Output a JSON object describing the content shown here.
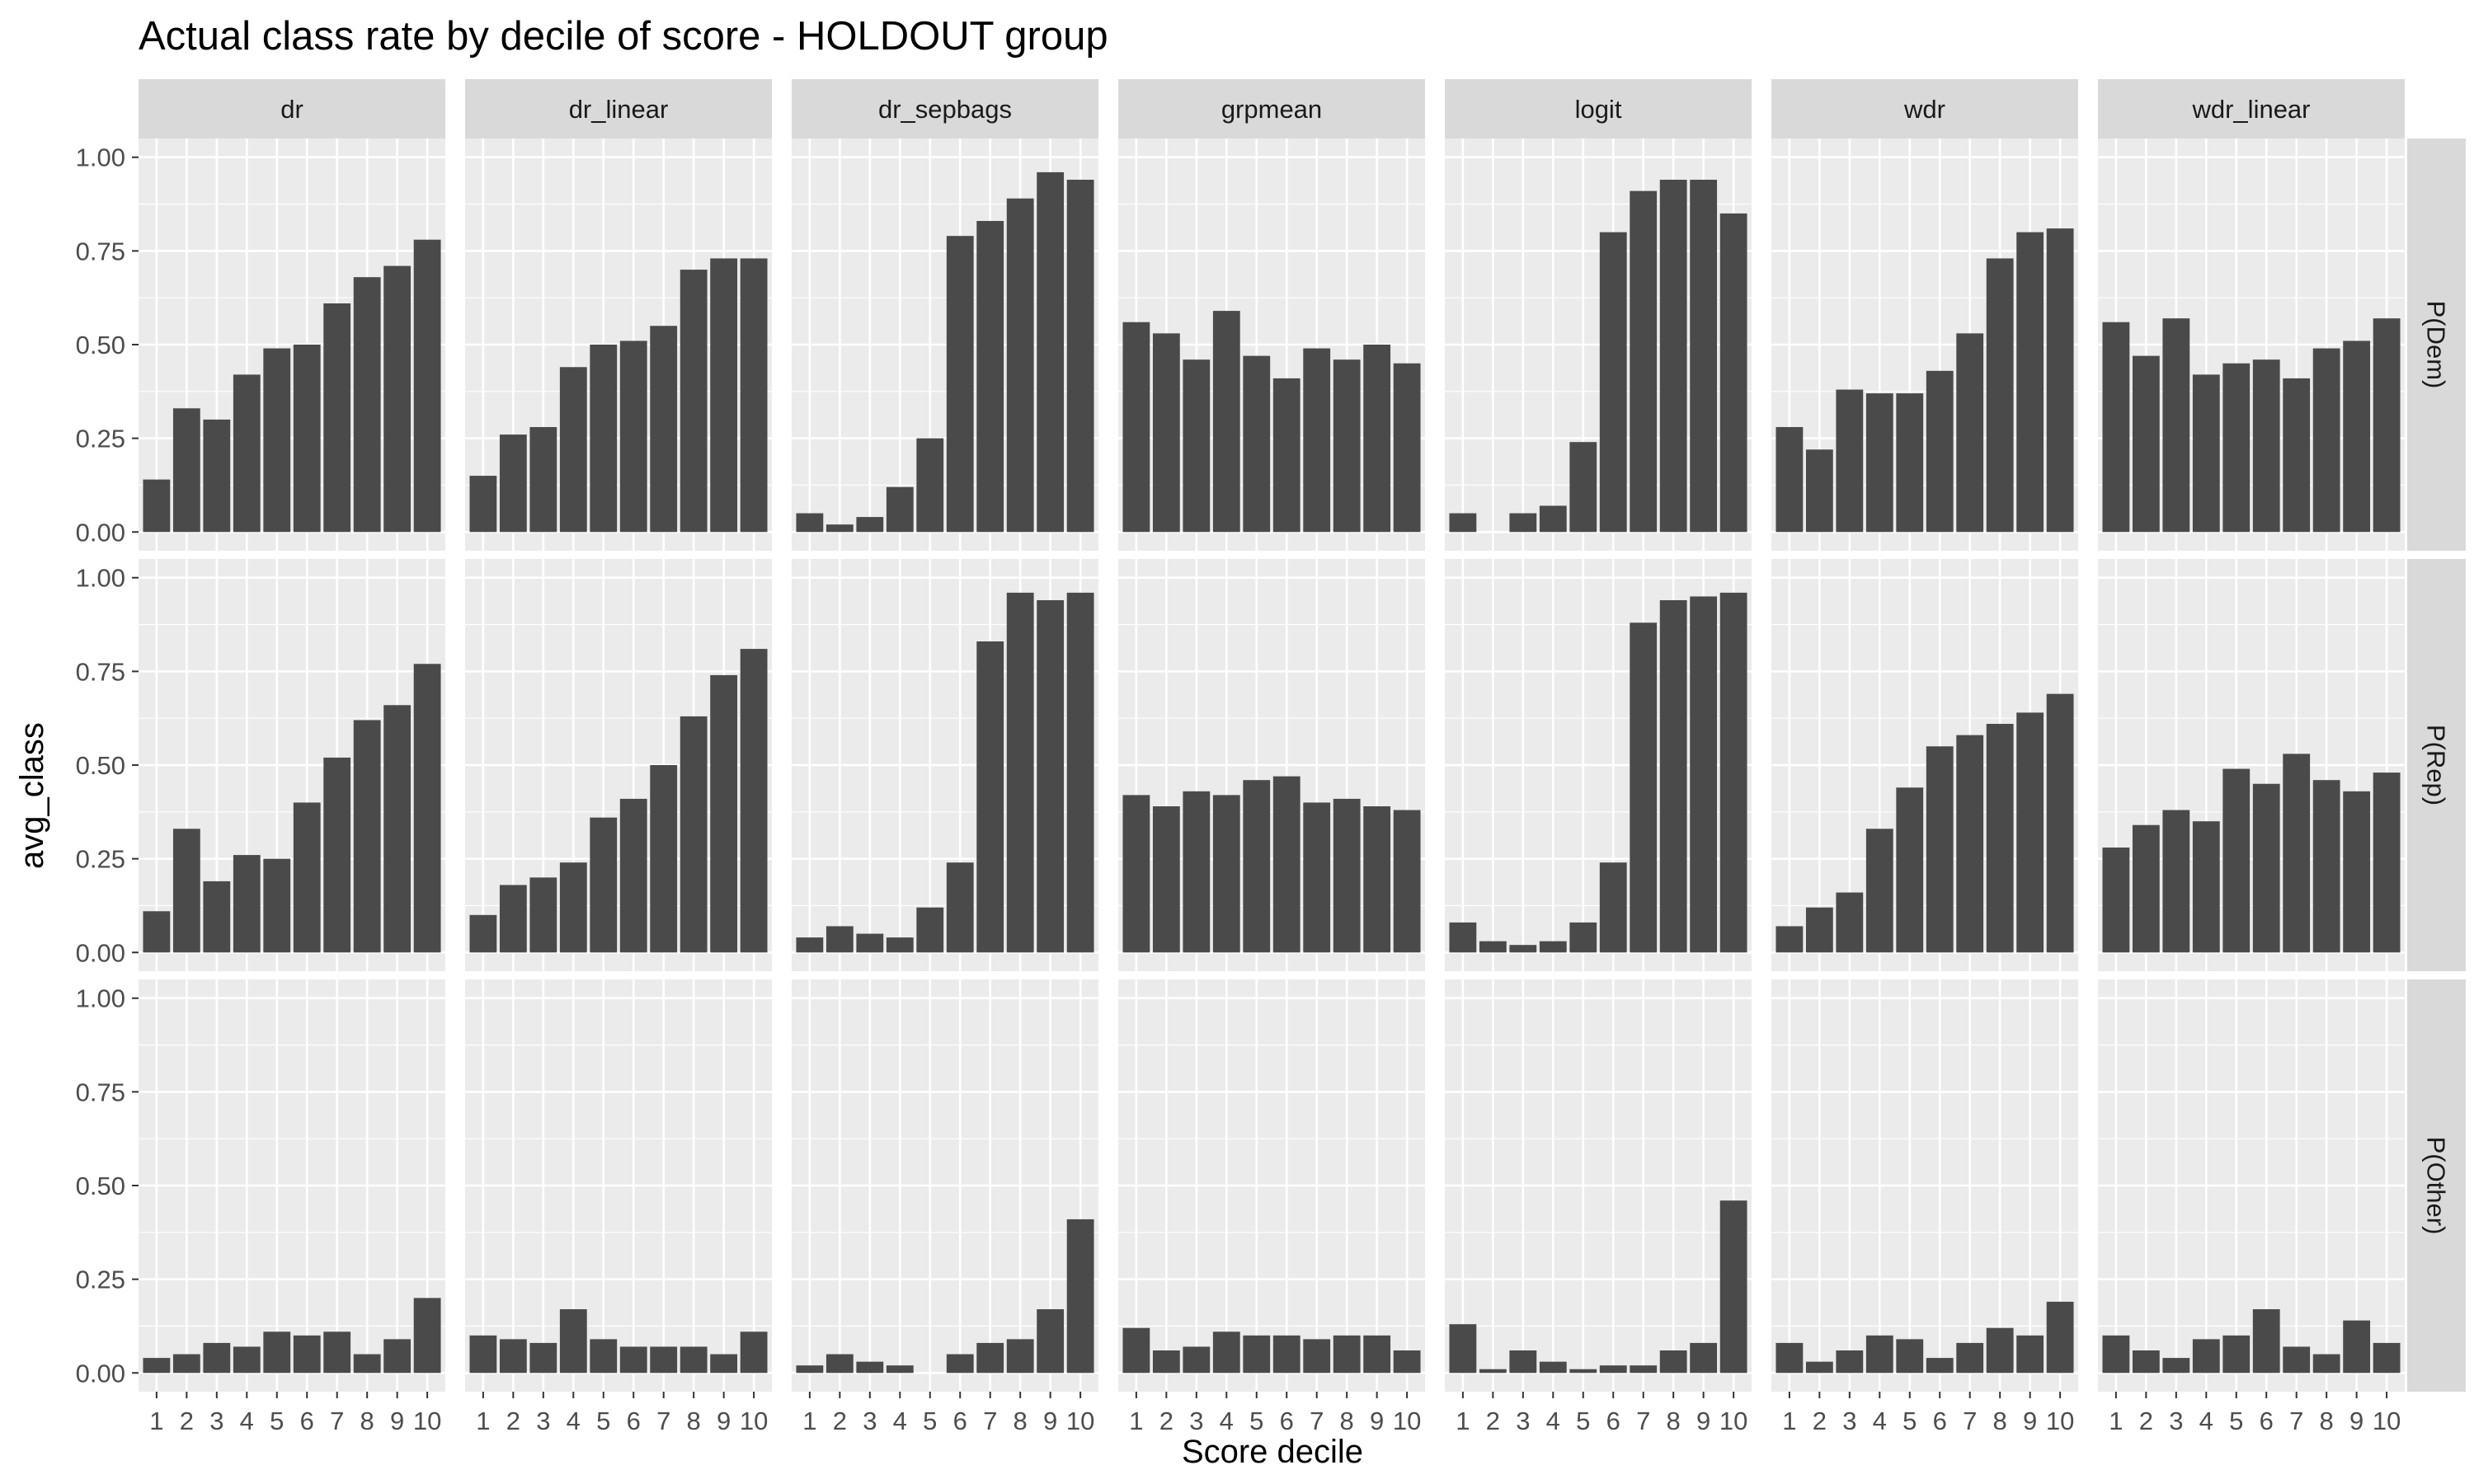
{
  "chart_data": {
    "type": "bar",
    "title": "Actual class rate by decile of score - HOLDOUT group",
    "xlabel": "Score decile",
    "ylabel": "avg_class",
    "ylim": [
      0,
      1
    ],
    "y_ticks": [
      "0.00",
      "0.25",
      "0.50",
      "0.75",
      "1.00"
    ],
    "categories": [
      "1",
      "2",
      "3",
      "4",
      "5",
      "6",
      "7",
      "8",
      "9",
      "10"
    ],
    "grid": true,
    "bar_color": "#4a4a4a",
    "panel_background": "#ebebeb",
    "strip_background": "#d9d9d9",
    "grid_color": "#ffffff",
    "columns": [
      "dr",
      "dr_linear",
      "dr_sepbags",
      "grpmean",
      "logit",
      "wdr",
      "wdr_linear"
    ],
    "rows": [
      "P(Dem)",
      "P(Rep)",
      "P(Other)"
    ],
    "panels": [
      [
        [
          0.14,
          0.33,
          0.3,
          0.42,
          0.49,
          0.5,
          0.61,
          0.68,
          0.71,
          0.78
        ],
        [
          0.15,
          0.26,
          0.28,
          0.44,
          0.5,
          0.51,
          0.55,
          0.7,
          0.73,
          0.73
        ],
        [
          0.05,
          0.02,
          0.04,
          0.12,
          0.25,
          0.79,
          0.83,
          0.89,
          0.96,
          0.94
        ],
        [
          0.56,
          0.53,
          0.46,
          0.59,
          0.47,
          0.41,
          0.49,
          0.46,
          0.5,
          0.45
        ],
        [
          0.05,
          0.0,
          0.05,
          0.07,
          0.24,
          0.8,
          0.91,
          0.94,
          0.94,
          0.85
        ],
        [
          0.28,
          0.22,
          0.38,
          0.37,
          0.37,
          0.43,
          0.53,
          0.73,
          0.8,
          0.81
        ],
        [
          0.56,
          0.47,
          0.57,
          0.42,
          0.45,
          0.46,
          0.41,
          0.49,
          0.51,
          0.57
        ]
      ],
      [
        [
          0.11,
          0.33,
          0.19,
          0.26,
          0.25,
          0.4,
          0.52,
          0.62,
          0.66,
          0.77
        ],
        [
          0.1,
          0.18,
          0.2,
          0.24,
          0.36,
          0.41,
          0.5,
          0.63,
          0.74,
          0.81
        ],
        [
          0.04,
          0.07,
          0.05,
          0.04,
          0.12,
          0.24,
          0.83,
          0.96,
          0.94,
          0.96
        ],
        [
          0.42,
          0.39,
          0.43,
          0.42,
          0.46,
          0.47,
          0.4,
          0.41,
          0.39,
          0.38
        ],
        [
          0.08,
          0.03,
          0.02,
          0.03,
          0.08,
          0.24,
          0.88,
          0.94,
          0.95,
          0.96
        ],
        [
          0.07,
          0.12,
          0.16,
          0.33,
          0.44,
          0.55,
          0.58,
          0.61,
          0.64,
          0.69
        ],
        [
          0.28,
          0.34,
          0.38,
          0.35,
          0.49,
          0.45,
          0.53,
          0.46,
          0.43,
          0.48
        ]
      ],
      [
        [
          0.04,
          0.05,
          0.08,
          0.07,
          0.11,
          0.1,
          0.11,
          0.05,
          0.09,
          0.2
        ],
        [
          0.1,
          0.09,
          0.08,
          0.17,
          0.09,
          0.07,
          0.07,
          0.07,
          0.05,
          0.11
        ],
        [
          0.02,
          0.05,
          0.03,
          0.02,
          0.0,
          0.05,
          0.08,
          0.09,
          0.17,
          0.41
        ],
        [
          0.12,
          0.06,
          0.07,
          0.11,
          0.1,
          0.1,
          0.09,
          0.1,
          0.1,
          0.06
        ],
        [
          0.13,
          0.01,
          0.06,
          0.03,
          0.01,
          0.02,
          0.02,
          0.06,
          0.08,
          0.46
        ],
        [
          0.08,
          0.03,
          0.06,
          0.1,
          0.09,
          0.04,
          0.08,
          0.12,
          0.1,
          0.19
        ],
        [
          0.1,
          0.06,
          0.04,
          0.09,
          0.1,
          0.17,
          0.07,
          0.05,
          0.14,
          0.08
        ]
      ]
    ]
  }
}
